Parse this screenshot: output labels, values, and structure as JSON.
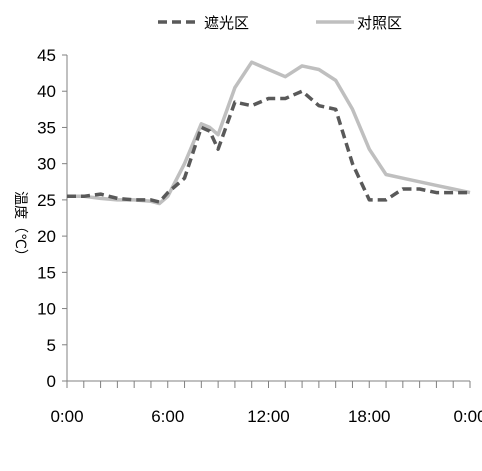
{
  "chart_data": {
    "type": "line",
    "title": "",
    "xlabel": "",
    "ylabel": "温度（℃）",
    "x_tick_labels": [
      "0:00",
      "6:00",
      "12:00",
      "18:00",
      "0:00"
    ],
    "x_ticks_hours": [
      0,
      6,
      12,
      18,
      24
    ],
    "xlim": [
      0,
      24
    ],
    "ylim": [
      0,
      45
    ],
    "y_ticks": [
      0,
      5,
      10,
      15,
      20,
      25,
      30,
      35,
      40,
      45
    ],
    "grid": false,
    "legend_position": "top",
    "series": [
      {
        "name": "遮光区",
        "style": "dashed",
        "color": "#595959",
        "x": [
          0,
          1,
          2,
          3,
          4,
          5,
          5.5,
          6,
          7,
          8,
          8.5,
          9,
          10,
          11,
          12,
          13,
          14,
          15,
          16,
          17,
          18,
          19,
          20,
          21,
          22,
          23,
          24
        ],
        "y": [
          25.5,
          25.5,
          25.8,
          25.2,
          25,
          25,
          24.7,
          26,
          28,
          35,
          34.5,
          32,
          38.5,
          38,
          39,
          39,
          40,
          38,
          37.5,
          30,
          25,
          25,
          26.5,
          26.5,
          26,
          26,
          26
        ]
      },
      {
        "name": "对照区",
        "style": "solid",
        "color": "#bfbfbf",
        "x": [
          0,
          1,
          2,
          3,
          4,
          5,
          5.5,
          6,
          7,
          8,
          8.5,
          9,
          10,
          11,
          12,
          13,
          14,
          15,
          16,
          17,
          18,
          19,
          20,
          21,
          22,
          23,
          24
        ],
        "y": [
          25.5,
          25.5,
          25.2,
          25,
          25,
          24.8,
          24.5,
          25.5,
          30,
          35.5,
          35,
          34,
          40.5,
          44,
          43,
          42,
          43.5,
          43,
          41.5,
          37.5,
          32,
          28.5,
          28,
          27.5,
          27,
          26.5,
          26
        ]
      }
    ]
  }
}
